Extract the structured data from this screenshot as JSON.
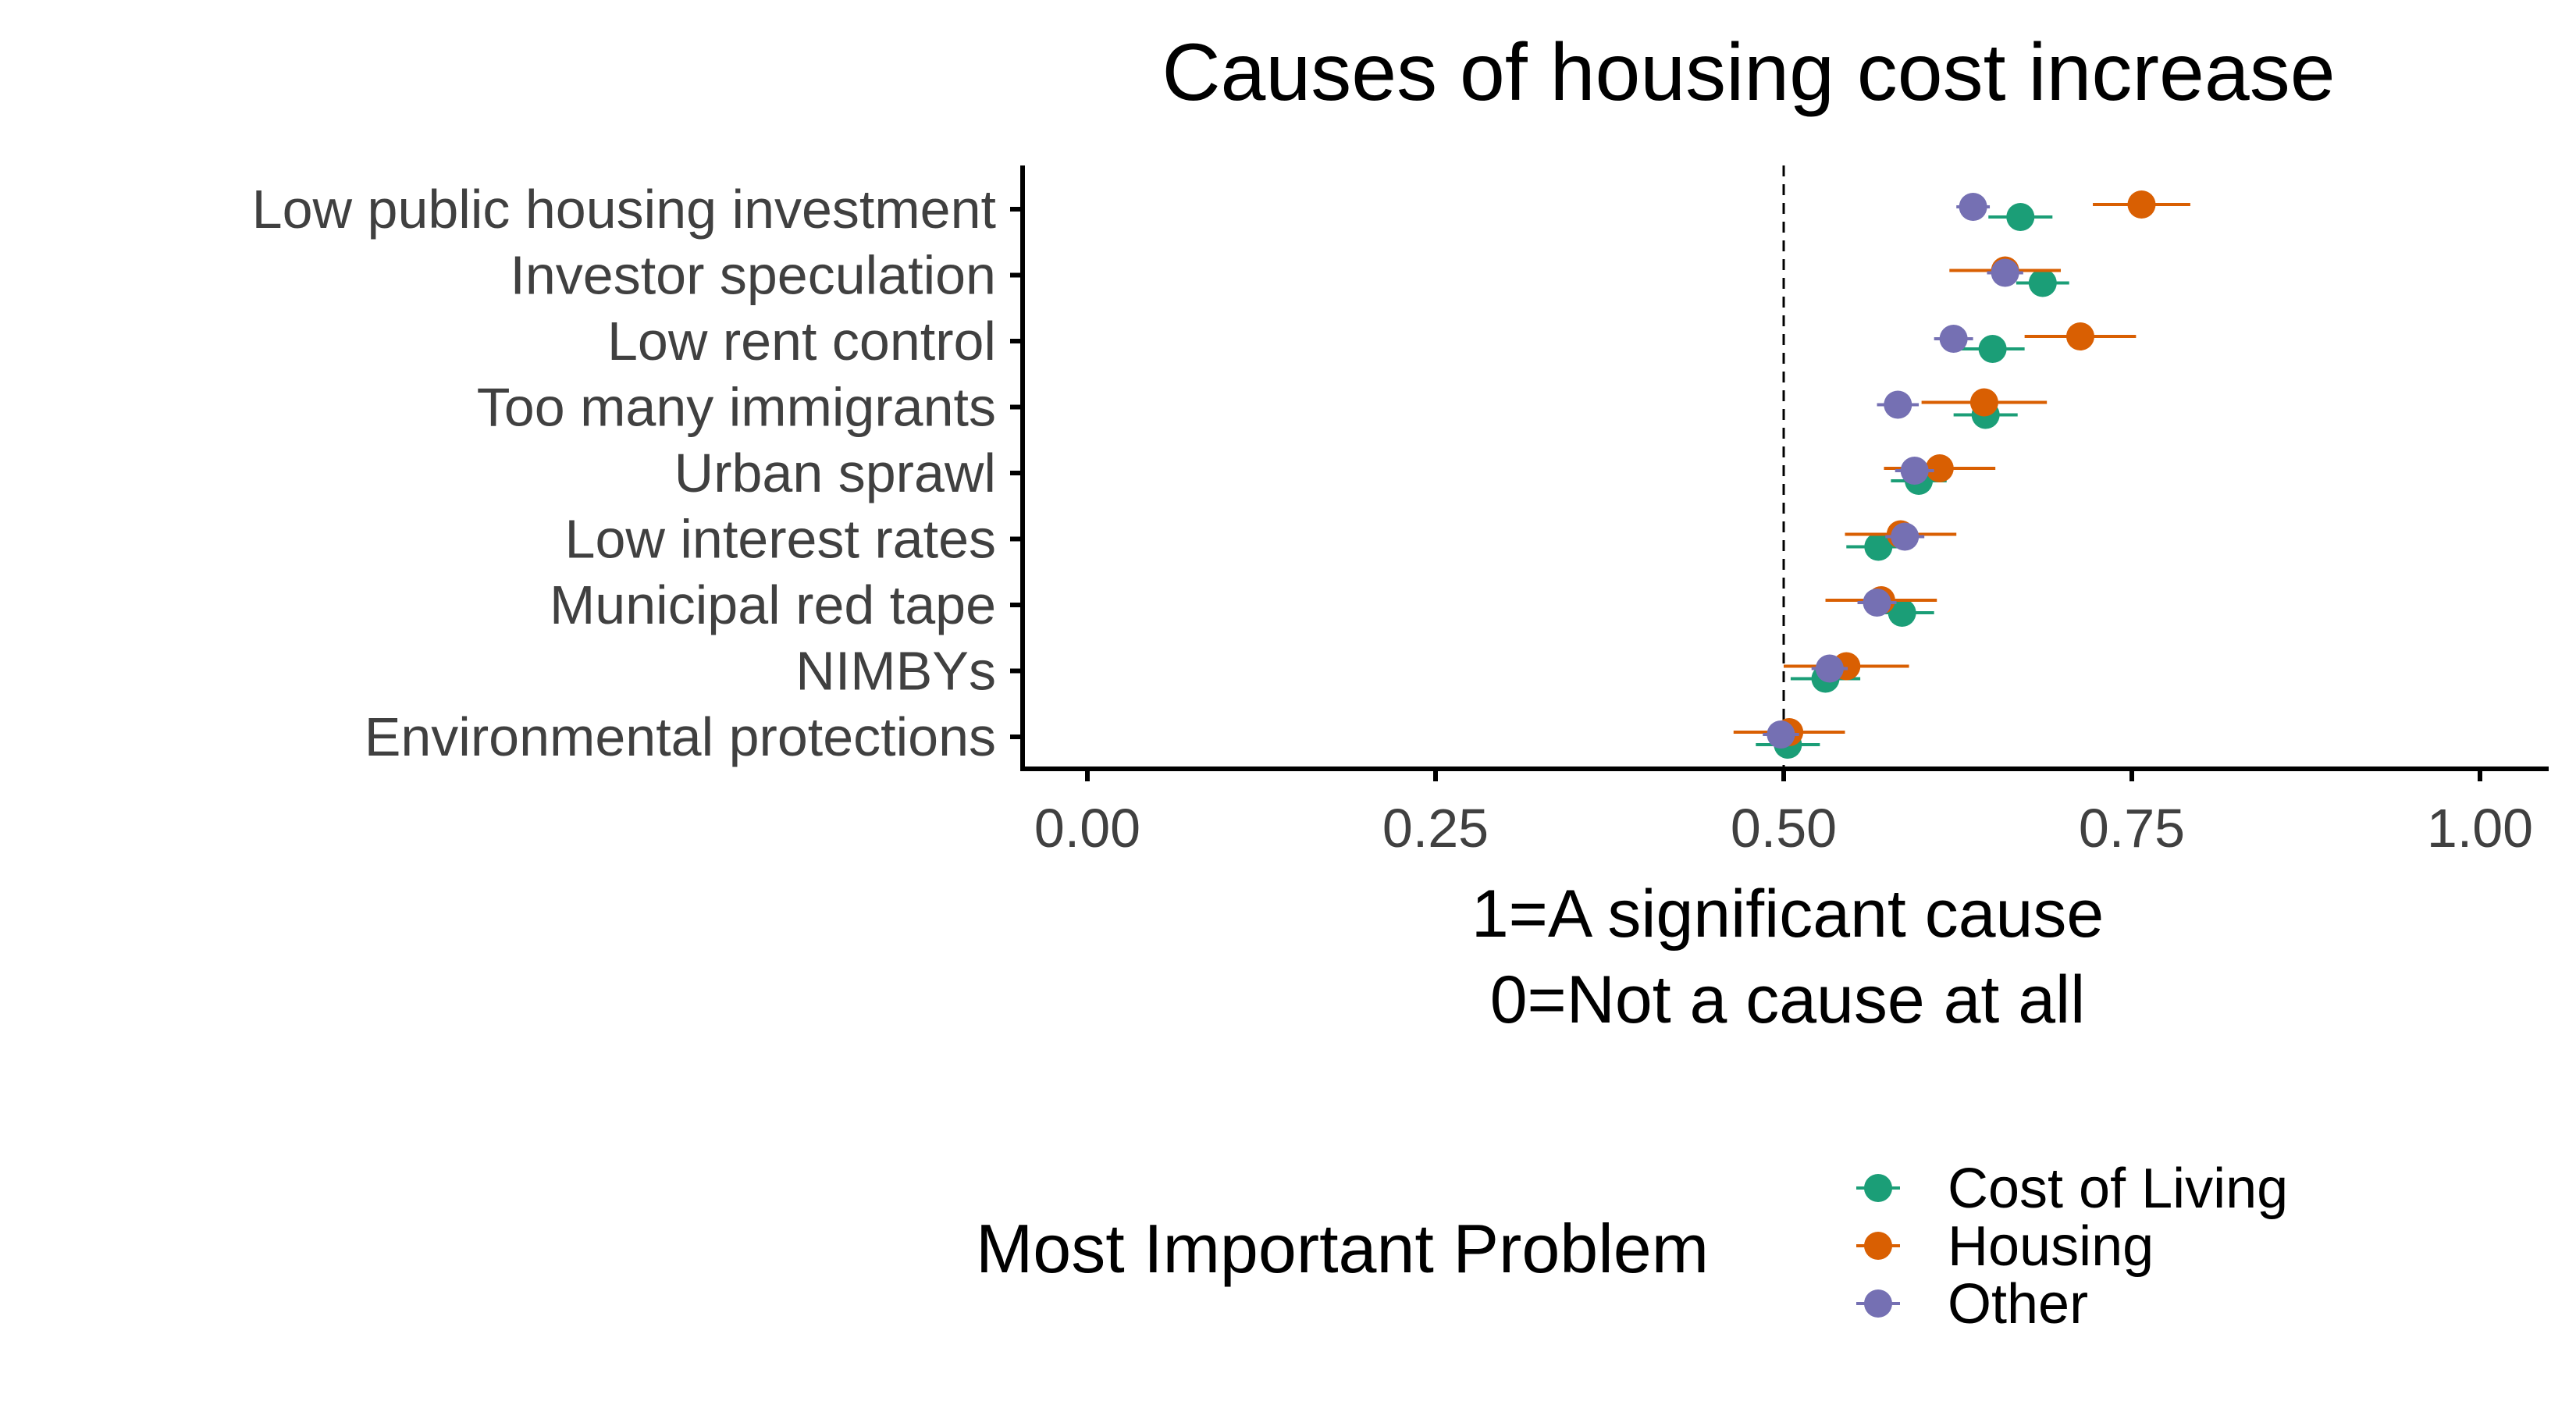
{
  "chart_data": {
    "type": "scatter",
    "title": "Causes of housing cost increase",
    "xlabel_lines": [
      "1=A significant cause",
      "0=Not a cause at all"
    ],
    "xlim": [
      0,
      1
    ],
    "x_ticks": [
      0,
      0.25,
      0.5,
      0.75,
      1
    ],
    "x_tick_labels": [
      "0.00",
      "0.25",
      "0.50",
      "0.75",
      "1.00"
    ],
    "reference_line": 0.5,
    "categories": [
      "Low public housing investment",
      "Investor speculation",
      "Low rent control ",
      "Too many immigrants",
      "Urban sprawl",
      "Low interest rates",
      "Municipal red tape",
      "NIMBYs",
      "Environmental protections"
    ],
    "legend": {
      "title": "Most Important Problem",
      "placement": "bottom"
    },
    "series": [
      {
        "name": "Cost of Living",
        "color": "#1b9e77",
        "values": [
          0.67,
          0.686,
          0.65,
          0.645,
          0.597,
          0.568,
          0.585,
          0.53,
          0.503
        ],
        "ci_low": [
          0.647,
          0.667,
          0.627,
          0.622,
          0.577,
          0.545,
          0.562,
          0.505,
          0.48
        ],
        "ci_high": [
          0.693,
          0.705,
          0.673,
          0.668,
          0.617,
          0.591,
          0.608,
          0.555,
          0.526
        ]
      },
      {
        "name": "Housing",
        "color": "#d95f02",
        "values": [
          0.757,
          0.659,
          0.713,
          0.644,
          0.612,
          0.584,
          0.57,
          0.545,
          0.504
        ],
        "ci_low": [
          0.722,
          0.619,
          0.673,
          0.599,
          0.572,
          0.544,
          0.53,
          0.5,
          0.464
        ],
        "ci_high": [
          0.792,
          0.699,
          0.753,
          0.689,
          0.652,
          0.624,
          0.61,
          0.59,
          0.544
        ]
      },
      {
        "name": "Other",
        "color": "#7570b3",
        "values": [
          0.636,
          0.659,
          0.622,
          0.582,
          0.594,
          0.587,
          0.567,
          0.533,
          0.498
        ],
        "ci_low": [
          0.624,
          0.646,
          0.608,
          0.567,
          0.58,
          0.573,
          0.553,
          0.52,
          0.485
        ],
        "ci_high": [
          0.648,
          0.672,
          0.636,
          0.597,
          0.608,
          0.601,
          0.581,
          0.546,
          0.511
        ]
      }
    ]
  }
}
